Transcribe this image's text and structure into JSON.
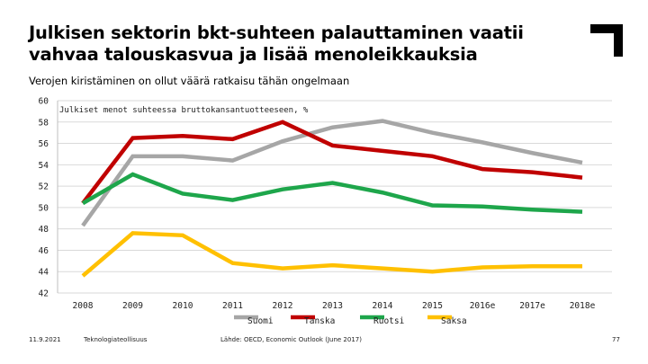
{
  "header": {
    "title_line1": "Julkisen sektorin bkt-suhteen palauttaminen vaatii",
    "title_line2": "vahvaa talouskasvua ja lisää menoleikkauksia",
    "subtitle": "Verojen kiristäminen on ollut väärä ratkaisu tähän ongelmaan"
  },
  "chart_data": {
    "type": "line",
    "title": "Julkiset menot suhteessa bruttokansantuotteeseen, %",
    "categories": [
      "2008",
      "2009",
      "2010",
      "2011",
      "2012",
      "2013",
      "2014",
      "2015",
      "2016e",
      "2017e",
      "2018e"
    ],
    "ylim": [
      42,
      60
    ],
    "yticks": [
      "60",
      "58",
      "56",
      "54",
      "52",
      "50",
      "48",
      "46",
      "44",
      "42"
    ],
    "series": [
      {
        "name": "Suomi",
        "color": "#a6a6a6",
        "values": [
          48.3,
          54.8,
          54.8,
          54.4,
          56.2,
          57.5,
          58.1,
          57.0,
          56.1,
          55.1,
          54.2
        ]
      },
      {
        "name": "Tanska",
        "color": "#c00000",
        "values": [
          50.4,
          56.5,
          56.7,
          56.4,
          58.0,
          55.8,
          55.3,
          54.8,
          53.6,
          53.3,
          52.8
        ]
      },
      {
        "name": "Ruotsi",
        "color": "#1ea64b",
        "values": [
          50.4,
          53.1,
          51.3,
          50.7,
          51.7,
          52.3,
          51.4,
          50.2,
          50.1,
          49.8,
          49.6
        ]
      },
      {
        "name": "Saksa",
        "color": "#ffc000",
        "values": [
          43.6,
          47.6,
          47.4,
          44.8,
          44.3,
          44.6,
          44.3,
          44.0,
          44.4,
          44.5,
          44.5
        ]
      }
    ]
  },
  "footer": {
    "date": "11.9.2021",
    "organization": "Teknologiateollisuus",
    "source": "Lähde: OECD, Economic Outlook (June 2017)",
    "page_number": "77"
  }
}
